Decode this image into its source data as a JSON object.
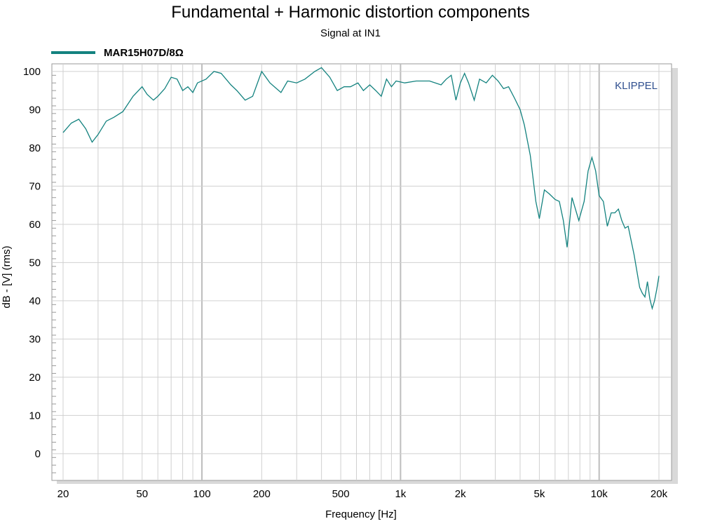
{
  "chart_data": {
    "type": "line",
    "title": "Fundamental + Harmonic distortion components",
    "subtitle": "Signal at IN1",
    "xlabel": "Frequency [Hz]",
    "ylabel": "dB - [V]  (rms)",
    "x_scale": "log",
    "xlim": [
      20,
      20000
    ],
    "ylim": [
      -7,
      102
    ],
    "x_ticks": [
      {
        "value": 20,
        "label": "20"
      },
      {
        "value": 50,
        "label": "50"
      },
      {
        "value": 100,
        "label": "100"
      },
      {
        "value": 200,
        "label": "200"
      },
      {
        "value": 500,
        "label": "500"
      },
      {
        "value": 1000,
        "label": "1k"
      },
      {
        "value": 2000,
        "label": "2k"
      },
      {
        "value": 5000,
        "label": "5k"
      },
      {
        "value": 10000,
        "label": "10k"
      },
      {
        "value": 20000,
        "label": "20k"
      }
    ],
    "y_ticks": [
      0,
      10,
      20,
      30,
      40,
      50,
      60,
      70,
      80,
      90,
      100
    ],
    "grid": true,
    "legend_position": "top-left",
    "watermark": "KLIPPEL",
    "colors": {
      "series": "#13827f",
      "grid": "#d0d0d0",
      "major_grid": "#bdbdbd",
      "frame": "#888888"
    },
    "series": [
      {
        "name": "MAR15H07D/8Ω",
        "points": [
          [
            20,
            84
          ],
          [
            22,
            86.5
          ],
          [
            24,
            87.5
          ],
          [
            26,
            85
          ],
          [
            28,
            81.5
          ],
          [
            30,
            83.5
          ],
          [
            33,
            87
          ],
          [
            36,
            88
          ],
          [
            40,
            89.5
          ],
          [
            45,
            93.5
          ],
          [
            50,
            96
          ],
          [
            53,
            94
          ],
          [
            57,
            92.5
          ],
          [
            60,
            93.5
          ],
          [
            65,
            95.5
          ],
          [
            70,
            98.5
          ],
          [
            75,
            98
          ],
          [
            80,
            95
          ],
          [
            85,
            96
          ],
          [
            90,
            94.5
          ],
          [
            95,
            97
          ],
          [
            105,
            98
          ],
          [
            115,
            100
          ],
          [
            125,
            99.5
          ],
          [
            140,
            96.5
          ],
          [
            150,
            95
          ],
          [
            165,
            92.5
          ],
          [
            180,
            93.5
          ],
          [
            200,
            100
          ],
          [
            220,
            97
          ],
          [
            250,
            94.5
          ],
          [
            270,
            97.5
          ],
          [
            300,
            97
          ],
          [
            330,
            98
          ],
          [
            370,
            100
          ],
          [
            400,
            101
          ],
          [
            440,
            98.5
          ],
          [
            480,
            95
          ],
          [
            520,
            96
          ],
          [
            560,
            96
          ],
          [
            610,
            97
          ],
          [
            650,
            95
          ],
          [
            700,
            96.5
          ],
          [
            750,
            95
          ],
          [
            800,
            93.5
          ],
          [
            850,
            98
          ],
          [
            900,
            96
          ],
          [
            950,
            97.5
          ],
          [
            1050,
            97
          ],
          [
            1200,
            97.5
          ],
          [
            1400,
            97.5
          ],
          [
            1600,
            96.5
          ],
          [
            1700,
            98
          ],
          [
            1800,
            99
          ],
          [
            1900,
            92.5
          ],
          [
            2000,
            97
          ],
          [
            2100,
            99.5
          ],
          [
            2200,
            97
          ],
          [
            2350,
            92.5
          ],
          [
            2500,
            98
          ],
          [
            2700,
            97
          ],
          [
            2900,
            99
          ],
          [
            3100,
            97.5
          ],
          [
            3300,
            95.5
          ],
          [
            3500,
            96
          ],
          [
            3750,
            93
          ],
          [
            4000,
            90
          ],
          [
            4200,
            86
          ],
          [
            4500,
            78
          ],
          [
            4800,
            66
          ],
          [
            5000,
            61.5
          ],
          [
            5300,
            69
          ],
          [
            5600,
            68
          ],
          [
            6000,
            66.5
          ],
          [
            6300,
            66
          ],
          [
            6600,
            61
          ],
          [
            6900,
            54
          ],
          [
            7300,
            67
          ],
          [
            7900,
            61
          ],
          [
            8400,
            66
          ],
          [
            8800,
            74
          ],
          [
            9200,
            77.5
          ],
          [
            9600,
            74
          ],
          [
            10000,
            67.5
          ],
          [
            10500,
            66
          ],
          [
            11000,
            59.5
          ],
          [
            11500,
            63
          ],
          [
            12000,
            63
          ],
          [
            12500,
            64
          ],
          [
            13000,
            61
          ],
          [
            13500,
            59
          ],
          [
            14000,
            59.5
          ],
          [
            15000,
            52
          ],
          [
            16000,
            43.5
          ],
          [
            16500,
            42
          ],
          [
            17000,
            41
          ],
          [
            17500,
            45
          ],
          [
            18000,
            40.5
          ],
          [
            18500,
            38
          ],
          [
            19000,
            40
          ],
          [
            19500,
            43
          ],
          [
            20000,
            46.5
          ]
        ]
      }
    ]
  }
}
